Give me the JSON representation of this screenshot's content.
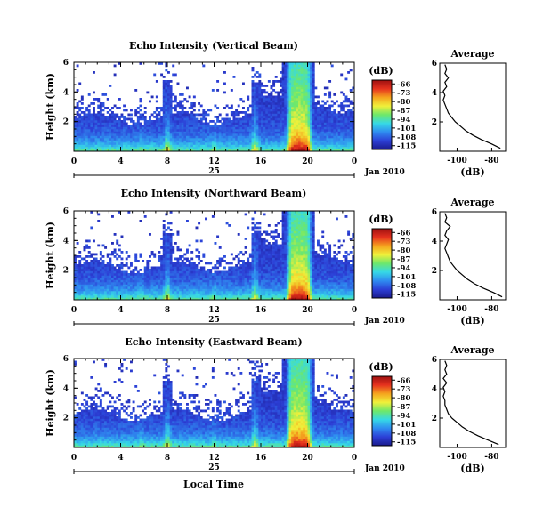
{
  "chart_data": {
    "type": "heatmap",
    "shared": {
      "xlabel": "Local Time",
      "date_day": "25",
      "date_month": "Jan 2010",
      "x_ticks": [
        "0",
        "4",
        "8",
        "12",
        "16",
        "20",
        "0"
      ],
      "xlim": [
        0,
        24
      ],
      "y_ticks": [
        "2",
        "4",
        "6"
      ],
      "ylabel": "Height (km)",
      "ylim": [
        0,
        6
      ],
      "colorbar_unit": "(dB)",
      "colorbar_ticks": [
        "-66",
        "-73",
        "-80",
        "-87",
        "-94",
        "-101",
        "-108",
        "-115"
      ],
      "colorbar_range": [
        -118,
        -63
      ],
      "colormap": [
        "#1a1a8c",
        "#2c3fd6",
        "#2f8cf0",
        "#36d9e6",
        "#6ee86a",
        "#f0f03a",
        "#f5a41e",
        "#e6321e",
        "#9e1010"
      ],
      "profile_title": "Average",
      "profile_xlabel": "(dB)",
      "profile_x_ticks": [
        "-100",
        "-80"
      ],
      "profile_xlim": [
        -110,
        -72
      ],
      "profile_y_ticks": [
        "2",
        "4",
        "6"
      ]
    },
    "panels": [
      {
        "title": "Echo Intensity (Vertical Beam)",
        "profile": {
          "height": [
            0.2,
            0.5,
            0.8,
            1.1,
            1.4,
            1.7,
            2.0,
            2.3,
            2.6,
            2.9,
            3.2,
            3.5,
            3.8,
            4.1,
            4.4,
            4.7,
            5.0,
            5.3,
            5.6,
            5.9
          ],
          "db": [
            -75,
            -80,
            -86,
            -91,
            -95,
            -98,
            -101,
            -103,
            -105,
            -106,
            -107,
            -108,
            -107,
            -108,
            -106,
            -107,
            -105,
            -107,
            -106,
            -107
          ]
        }
      },
      {
        "title": "Echo Intensity (Northward Beam)",
        "profile": {
          "height": [
            0.2,
            0.5,
            0.8,
            1.1,
            1.4,
            1.7,
            2.0,
            2.3,
            2.6,
            2.9,
            3.2,
            3.5,
            3.8,
            4.1,
            4.4,
            4.7,
            5.0,
            5.3,
            5.6,
            5.9
          ],
          "db": [
            -74,
            -79,
            -85,
            -90,
            -94,
            -97,
            -100,
            -102,
            -104,
            -105,
            -106,
            -107,
            -106,
            -105,
            -107,
            -106,
            -104,
            -107,
            -106,
            -107
          ]
        }
      },
      {
        "title": "Echo Intensity (Eastward Beam)",
        "profile": {
          "height": [
            0.2,
            0.5,
            0.8,
            1.1,
            1.4,
            1.7,
            2.0,
            2.3,
            2.6,
            2.9,
            3.2,
            3.5,
            3.8,
            4.1,
            4.4,
            4.7,
            5.0,
            5.3,
            5.6,
            5.9
          ],
          "db": [
            -76,
            -82,
            -88,
            -93,
            -97,
            -100,
            -103,
            -105,
            -106,
            -107,
            -107,
            -108,
            -107,
            -108,
            -106,
            -108,
            -106,
            -107,
            -106,
            -107
          ]
        }
      }
    ]
  }
}
